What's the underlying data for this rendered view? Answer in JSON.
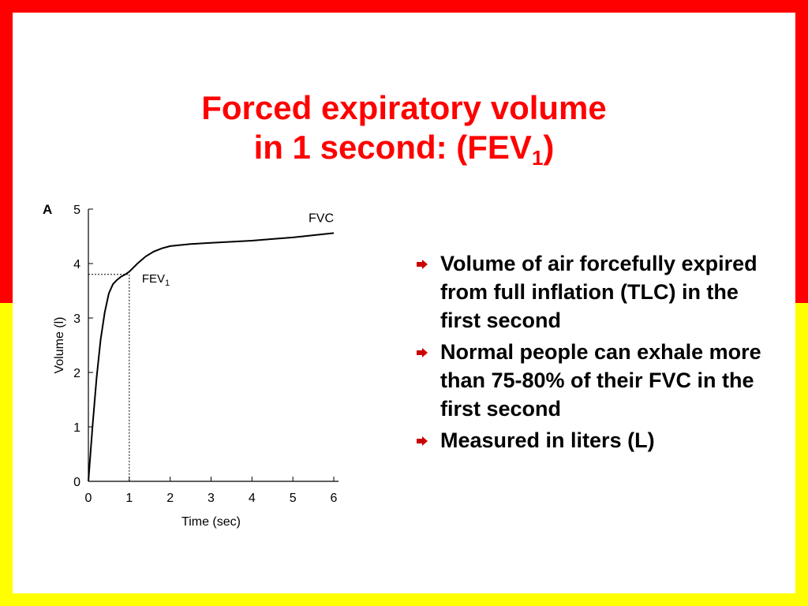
{
  "colors": {
    "frame_top": "#ff0000",
    "frame_bottom": "#ffff00",
    "title": "#ff0000",
    "bullet_marker": "#cc0000",
    "text": "#000000"
  },
  "title": {
    "line1": "Forced expiratory volume",
    "line2_prefix": "in 1 second: (FEV",
    "line2_sub": "1",
    "line2_suffix": ")"
  },
  "bullets": [
    {
      "icon": "arrow-bullet-icon",
      "text": "Volume of air forcefully expired from full inflation (TLC) in the first second"
    },
    {
      "icon": "arrow-bullet-icon",
      "text": "Normal people can exhale more than 75-80% of their FVC in the first second"
    },
    {
      "icon": "arrow-bullet-icon",
      "text": "Measured in liters (L)"
    }
  ],
  "chart_data": {
    "type": "line",
    "panel_label": "A",
    "xlabel": "Time (sec)",
    "ylabel": "Volume (l)",
    "xlim": [
      0,
      6
    ],
    "ylim": [
      0,
      5
    ],
    "x_ticks": [
      "0",
      "1",
      "2",
      "3",
      "4",
      "5",
      "6"
    ],
    "y_ticks": [
      "0",
      "1",
      "2",
      "3",
      "4",
      "5"
    ],
    "grid": false,
    "series": [
      {
        "name": "FVC",
        "x": [
          0,
          0.1,
          0.2,
          0.3,
          0.4,
          0.5,
          0.6,
          0.7,
          0.8,
          0.9,
          1.0,
          1.2,
          1.4,
          1.6,
          1.8,
          2.0,
          2.5,
          3.0,
          3.5,
          4.0,
          4.5,
          5.0,
          5.5,
          6.0
        ],
        "y": [
          0,
          1.0,
          1.9,
          2.6,
          3.1,
          3.45,
          3.62,
          3.7,
          3.76,
          3.8,
          3.85,
          4.0,
          4.13,
          4.22,
          4.28,
          4.32,
          4.36,
          4.38,
          4.4,
          4.42,
          4.45,
          4.48,
          4.52,
          4.56
        ]
      }
    ],
    "annotations": [
      {
        "text": "FEV",
        "subscript": "1",
        "x": 1.0,
        "y": 3.8
      }
    ],
    "reference_lines": {
      "fev1_time": 1.0,
      "fev1_volume": 3.8
    }
  }
}
